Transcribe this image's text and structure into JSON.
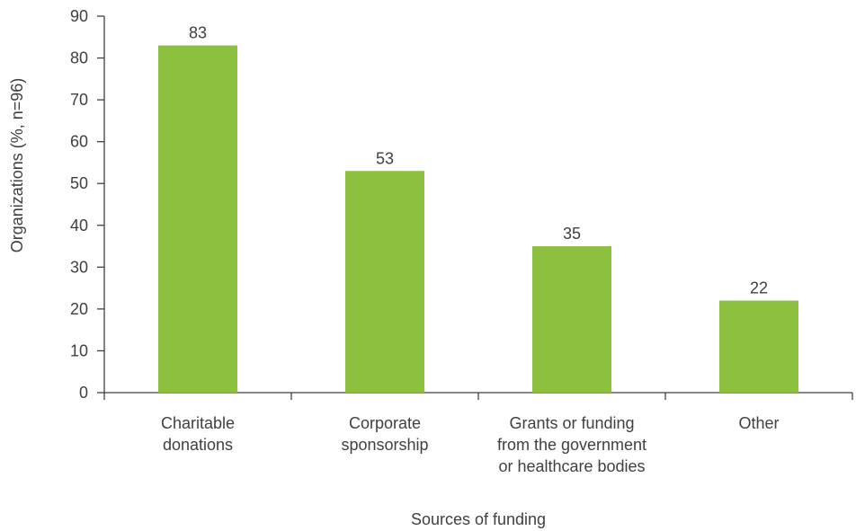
{
  "chart_data": {
    "type": "bar",
    "categories": [
      [
        "Charitable",
        "donations"
      ],
      [
        "Corporate",
        "sponsorship"
      ],
      [
        "Grants or funding",
        "from the government",
        "or healthcare bodies"
      ],
      [
        "Other"
      ]
    ],
    "values": [
      83,
      53,
      35,
      22
    ],
    "value_labels": [
      "83",
      "53",
      "35",
      "22"
    ],
    "bar_color": "#8dc03f",
    "ylim": [
      0,
      90
    ],
    "yticks": [
      0,
      10,
      20,
      30,
      40,
      50,
      60,
      70,
      80,
      90
    ],
    "xlabel": "Sources of funding",
    "ylabel": "Organizations (%, n=96)",
    "grid": false,
    "legend": "none"
  }
}
